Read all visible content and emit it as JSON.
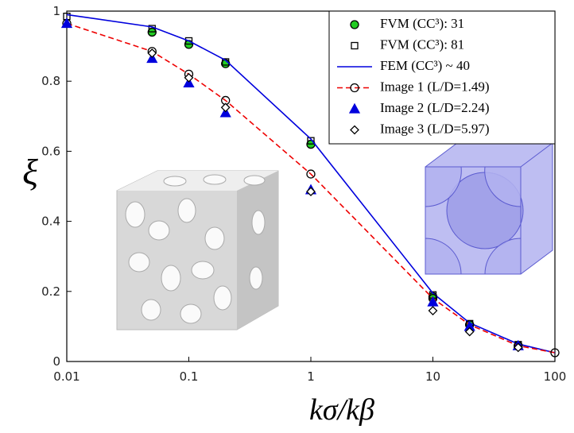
{
  "chart_data": {
    "type": "line",
    "xlabel": "kσ/kβ",
    "ylabel": "ξ",
    "xscale": "log",
    "xlim": [
      0.01,
      100
    ],
    "ylim": [
      0,
      1
    ],
    "xticks": [
      0.01,
      0.1,
      1,
      10,
      100
    ],
    "yticks": [
      0,
      0.2,
      0.4,
      0.6,
      0.8,
      1
    ],
    "grid": false,
    "legend": "upper right",
    "series": [
      {
        "name": "FVM (CC³): 31",
        "color": "#000000",
        "fill": "#22cc22",
        "marker": "circle",
        "line": "none",
        "x": [
          0.05,
          0.1,
          0.2,
          1,
          10,
          20,
          50
        ],
        "values": [
          0.94,
          0.905,
          0.85,
          0.62,
          0.185,
          0.105,
          0.045
        ]
      },
      {
        "name": "FVM (CC³): 81",
        "color": "#000000",
        "fill": "none",
        "marker": "square",
        "line": "none",
        "x": [
          0.01,
          0.05,
          0.1,
          0.2,
          1,
          10,
          20,
          50
        ],
        "values": [
          0.985,
          0.95,
          0.915,
          0.855,
          0.63,
          0.19,
          0.108,
          0.048
        ]
      },
      {
        "name": "FEM (CC³) ~ 40",
        "color": "#0000dd",
        "fill": "none",
        "marker": "none",
        "line": "solid",
        "x": [
          0.01,
          0.05,
          0.1,
          0.2,
          1,
          10,
          20,
          50,
          100
        ],
        "values": [
          0.99,
          0.955,
          0.915,
          0.86,
          0.635,
          0.195,
          0.11,
          0.05,
          0.025
        ]
      },
      {
        "name": "Image 1 (L/D=1.49)",
        "color": "#ee0000",
        "fill": "none",
        "marker": "circle",
        "line": "dashed",
        "markercolor": "#000000",
        "x": [
          0.01,
          0.05,
          0.1,
          0.2,
          1,
          10,
          20,
          50,
          100
        ],
        "values": [
          0.965,
          0.885,
          0.82,
          0.745,
          0.535,
          0.18,
          0.105,
          0.045,
          0.025
        ]
      },
      {
        "name": "Image 2 (L/D=2.24)",
        "color": "#0000dd",
        "fill": "#0000dd",
        "marker": "triangle",
        "line": "none",
        "x": [
          0.01,
          0.05,
          0.1,
          0.2,
          1,
          10,
          20,
          50
        ],
        "values": [
          0.965,
          0.865,
          0.795,
          0.71,
          0.49,
          0.17,
          0.1,
          0.045
        ]
      },
      {
        "name": "Image 3 (L/D=5.97)",
        "color": "#000000",
        "fill": "#ffffff",
        "marker": "diamond",
        "line": "none",
        "x": [
          0.05,
          0.1,
          0.2,
          1,
          10,
          20,
          50
        ],
        "values": [
          0.88,
          0.81,
          0.725,
          0.485,
          0.145,
          0.085,
          0.04
        ]
      }
    ]
  }
}
